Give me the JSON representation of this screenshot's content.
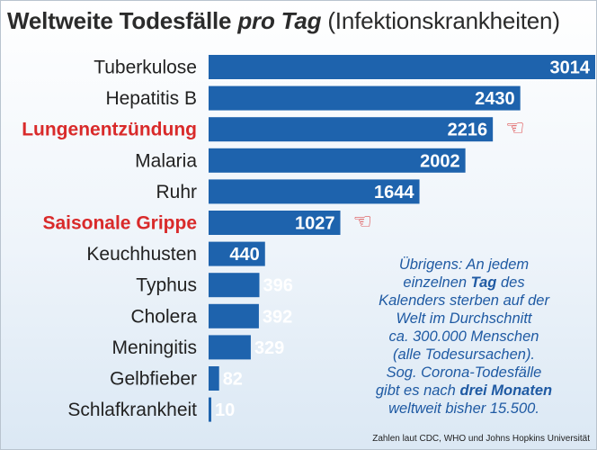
{
  "title": {
    "part1": "Weltweite Todesfälle ",
    "part2": "pro Tag",
    "part3": " (Infektionskrankheiten)"
  },
  "colors": {
    "bar": "#1e63ad",
    "highlight_label": "#d92a2a",
    "note_text": "#1f5aa3"
  },
  "chart_data": {
    "type": "bar",
    "orientation": "horizontal",
    "categories": [
      "Tuberkulose",
      "Hepatitis B",
      "Lungenentzündung",
      "Malaria",
      "Ruhr",
      "Saisonale Grippe",
      "Keuchhusten",
      "Typhus",
      "Cholera",
      "Meningitis",
      "Gelbfieber",
      "Schlafkrankheit"
    ],
    "values": [
      3014,
      2430,
      2216,
      2002,
      1644,
      1027,
      440,
      396,
      392,
      329,
      82,
      10
    ],
    "highlighted": [
      "Lungenentzündung",
      "Saisonale Grippe"
    ],
    "title": "Weltweite Todesfälle pro Tag (Infektionskrankheiten)",
    "xlim": [
      0,
      3014
    ],
    "grid": false,
    "legend": "none"
  },
  "note": {
    "line1": "Übrigens: An jedem",
    "line2_a": "einzelnen ",
    "line2_b": "Tag",
    "line2_c": " des",
    "line3": "Kalenders sterben auf der",
    "line4": "Welt im Durchschnitt",
    "line5": "ca. 300.000 Menschen",
    "line6": "(alle Todesursachen).",
    "line7": "Sog. Corona-Todesfälle",
    "line8_a": "gibt es nach ",
    "line8_b": "drei Monaten",
    "line9": "weltweit bisher 15.500."
  },
  "source": "Zahlen laut CDC, WHO und Johns Hopkins Universität",
  "icons": {
    "pointing_hand": "pointing-hand-icon",
    "glyph": "☜"
  }
}
